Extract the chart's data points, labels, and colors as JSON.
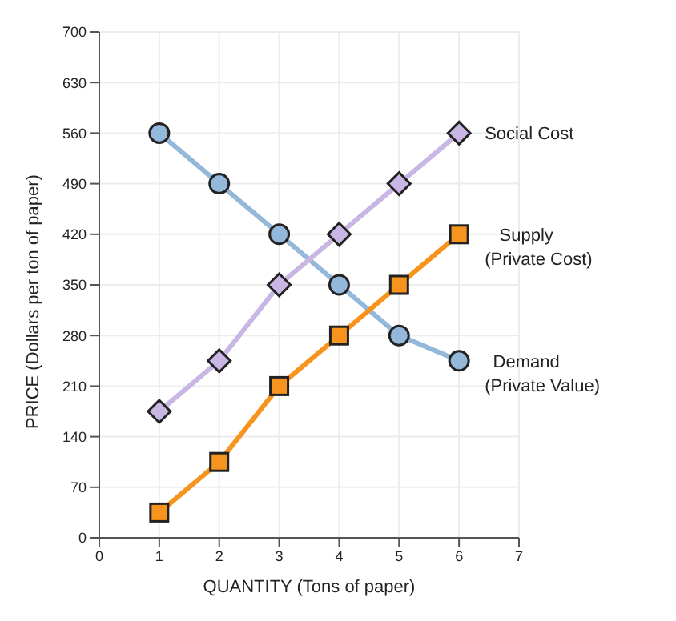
{
  "chart_data": {
    "type": "line",
    "xlabel": "QUANTITY (Tons of paper)",
    "ylabel": "PRICE (Dollars per ton of paper)",
    "x": [
      1,
      2,
      3,
      4,
      5,
      6
    ],
    "xlim": [
      0,
      7
    ],
    "xticks": [
      0,
      1,
      2,
      3,
      4,
      5,
      6,
      7
    ],
    "ylim": [
      0,
      700
    ],
    "yticks": [
      0,
      70,
      140,
      210,
      280,
      350,
      420,
      490,
      560,
      630,
      700
    ],
    "grid": true,
    "legend": false,
    "series": [
      {
        "name": "Demand\n(Private Value)",
        "color": "#94b8da",
        "marker": "circle",
        "values": [
          560,
          490,
          420,
          350,
          280,
          245
        ]
      },
      {
        "name": "Supply\n(Private Cost)",
        "color": "#f7941d",
        "marker": "square",
        "values": [
          35,
          105,
          210,
          280,
          350,
          420
        ]
      },
      {
        "name": "Social Cost",
        "color": "#c9b6e4",
        "marker": "diamond",
        "values": [
          175,
          245,
          350,
          420,
          490,
          560
        ]
      }
    ]
  }
}
